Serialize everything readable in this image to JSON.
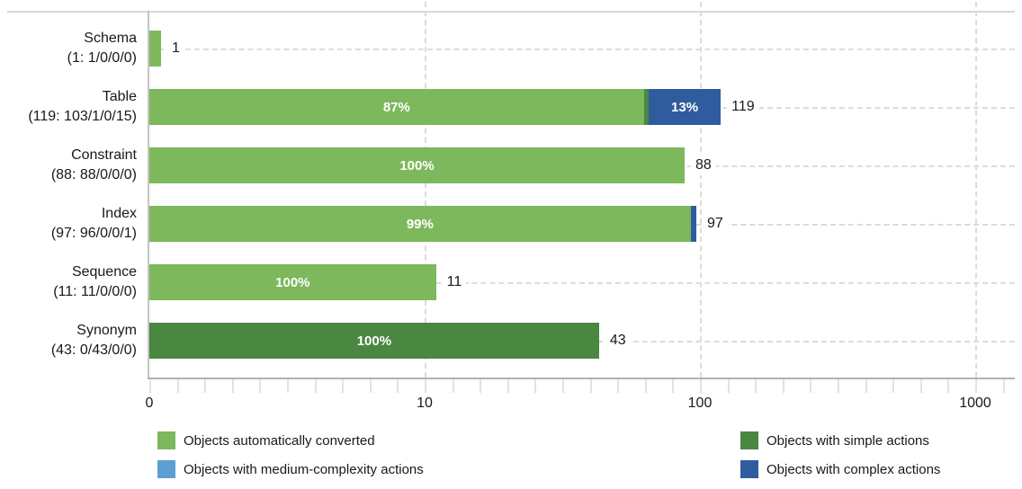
{
  "chart_data": {
    "type": "bar",
    "orientation": "horizontal",
    "x_scale": "log",
    "title": "",
    "xlabel": "",
    "ylabel": "",
    "x_axis": {
      "ticks": [
        {
          "label": "0",
          "value": 0
        },
        {
          "label": "10",
          "value": 10
        },
        {
          "label": "100",
          "value": 100
        },
        {
          "label": "1000",
          "value": 1000
        }
      ],
      "minor_ticks_per_decade": 10,
      "grid": "dashed"
    },
    "series_colors": {
      "auto": "#7DB85C",
      "simple": "#4A8741",
      "medium": "#5D9FD3",
      "complex": "#2F5C9E"
    },
    "categories": [
      {
        "name": "Schema",
        "detail": "(1: 1/0/0/0)",
        "total": 1,
        "total_label": "1",
        "segments": [
          {
            "series": "auto",
            "value": 1,
            "label": ""
          }
        ]
      },
      {
        "name": "Table",
        "detail": "(119: 103/1/0/15)",
        "total": 119,
        "total_label": "119",
        "segments": [
          {
            "series": "auto",
            "value": 103,
            "label": "87%"
          },
          {
            "series": "simple",
            "value": 1,
            "label": ""
          },
          {
            "series": "complex",
            "value": 15,
            "label": "13%"
          }
        ]
      },
      {
        "name": "Constraint",
        "detail": "(88: 88/0/0/0)",
        "total": 88,
        "total_label": "88",
        "segments": [
          {
            "series": "auto",
            "value": 88,
            "label": "100%"
          }
        ]
      },
      {
        "name": "Index",
        "detail": "(97: 96/0/0/1)",
        "total": 97,
        "total_label": "97",
        "segments": [
          {
            "series": "auto",
            "value": 96,
            "label": "99%"
          },
          {
            "series": "complex",
            "value": 1,
            "label": ""
          }
        ]
      },
      {
        "name": "Sequence",
        "detail": "(11: 11/0/0/0)",
        "total": 11,
        "total_label": "11",
        "segments": [
          {
            "series": "auto",
            "value": 11,
            "label": "100%"
          }
        ]
      },
      {
        "name": "Synonym",
        "detail": "(43: 0/43/0/0)",
        "total": 43,
        "total_label": "43",
        "segments": [
          {
            "series": "simple",
            "value": 43,
            "label": "100%"
          }
        ]
      }
    ],
    "legend": {
      "position": "bottom",
      "columns": [
        {
          "items": [
            {
              "series": "auto",
              "label": "Objects automatically converted"
            },
            {
              "series": "medium",
              "label": "Objects with medium-complexity actions"
            }
          ]
        },
        {
          "items": [
            {
              "series": "simple",
              "label": "Objects with simple actions"
            },
            {
              "series": "complex",
              "label": "Objects with complex actions"
            }
          ]
        }
      ]
    }
  }
}
